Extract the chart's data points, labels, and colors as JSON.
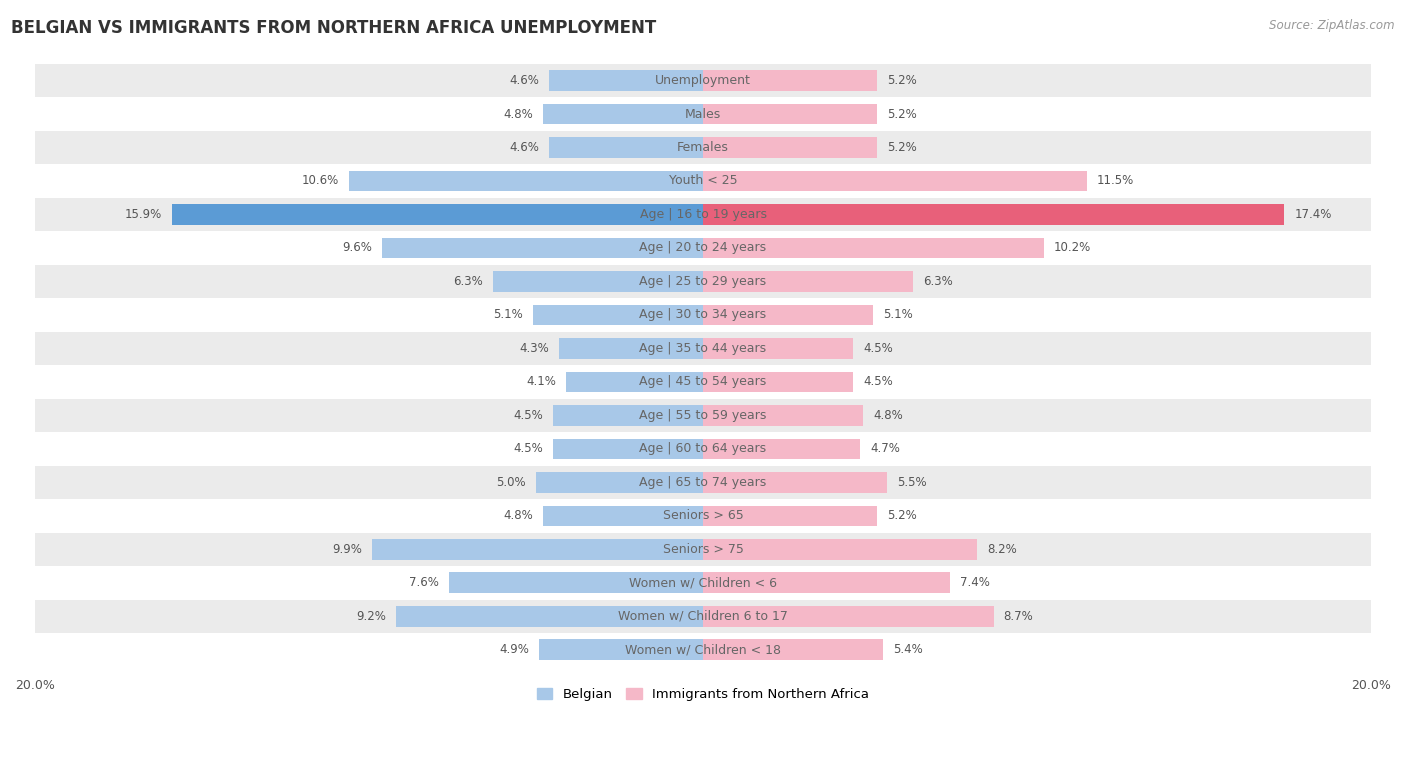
{
  "title": "BELGIAN VS IMMIGRANTS FROM NORTHERN AFRICA UNEMPLOYMENT",
  "source": "Source: ZipAtlas.com",
  "categories": [
    "Unemployment",
    "Males",
    "Females",
    "Youth < 25",
    "Age | 16 to 19 years",
    "Age | 20 to 24 years",
    "Age | 25 to 29 years",
    "Age | 30 to 34 years",
    "Age | 35 to 44 years",
    "Age | 45 to 54 years",
    "Age | 55 to 59 years",
    "Age | 60 to 64 years",
    "Age | 65 to 74 years",
    "Seniors > 65",
    "Seniors > 75",
    "Women w/ Children < 6",
    "Women w/ Children 6 to 17",
    "Women w/ Children < 18"
  ],
  "belgian": [
    4.6,
    4.8,
    4.6,
    10.6,
    15.9,
    9.6,
    6.3,
    5.1,
    4.3,
    4.1,
    4.5,
    4.5,
    5.0,
    4.8,
    9.9,
    7.6,
    9.2,
    4.9
  ],
  "immigrants": [
    5.2,
    5.2,
    5.2,
    11.5,
    17.4,
    10.2,
    6.3,
    5.1,
    4.5,
    4.5,
    4.8,
    4.7,
    5.5,
    5.2,
    8.2,
    7.4,
    8.7,
    5.4
  ],
  "belgian_color": "#a8c8e8",
  "immigrant_color": "#f5b8c8",
  "belgian_highlight_color": "#5b9bd5",
  "immigrant_highlight_color": "#e8607a",
  "highlight_rows": [
    4
  ],
  "axis_max": 20.0,
  "bg_color": "#ffffff",
  "row_bg_odd": "#ebebeb",
  "row_bg_even": "#ffffff",
  "label_fontsize": 9.0,
  "value_fontsize": 8.5,
  "title_fontsize": 12,
  "legend_belgian": "Belgian",
  "legend_immigrant": "Immigrants from Northern Africa",
  "center_label_color": "#666666",
  "value_label_color": "#555555"
}
